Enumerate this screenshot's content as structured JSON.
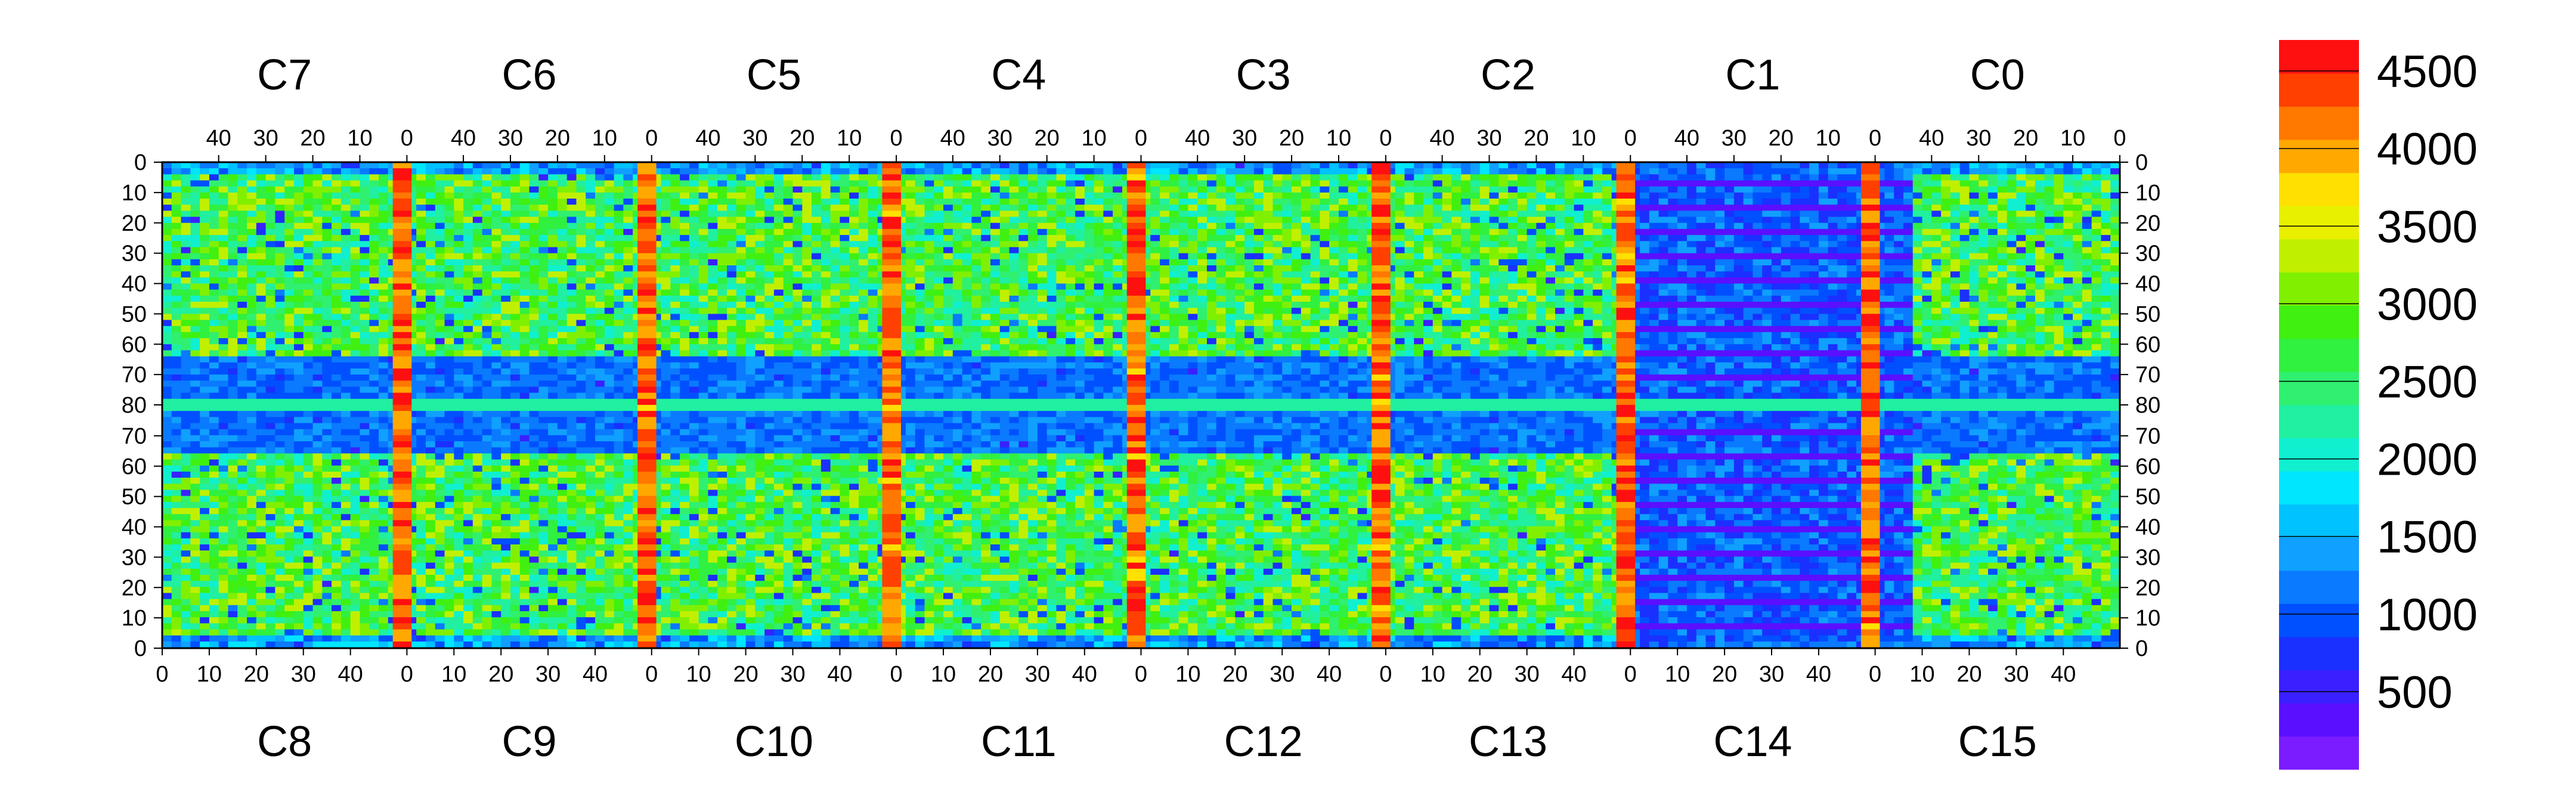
{
  "chart_data": {
    "type": "heatmap",
    "title": "",
    "xlabel": "",
    "ylabel": "",
    "chips_top": [
      "C7",
      "C6",
      "C5",
      "C4",
      "C3",
      "C2",
      "C1",
      "C0"
    ],
    "chips_bottom": [
      "C8",
      "C9",
      "C10",
      "C11",
      "C12",
      "C13",
      "C14",
      "C15"
    ],
    "chip_columns": 52,
    "rows_per_half": 80,
    "x_ticks_top": [
      "40",
      "30",
      "20",
      "10",
      "0"
    ],
    "x_ticks_bottom": [
      "0",
      "10",
      "20",
      "30",
      "40"
    ],
    "y_ticks_top_half": [
      "0",
      "10",
      "20",
      "30",
      "40",
      "50",
      "60",
      "70",
      "80"
    ],
    "y_ticks_bottom_half": [
      "70",
      "60",
      "50",
      "40",
      "30",
      "20",
      "10",
      "0"
    ],
    "zlim": [
      0,
      4700
    ],
    "colorbar": {
      "ticks": [
        "4500",
        "4000",
        "3500",
        "3000",
        "2500",
        "2000",
        "1500",
        "1000",
        "500"
      ],
      "tick_values": [
        4500,
        4000,
        3500,
        3000,
        2500,
        2000,
        1500,
        1000,
        500
      ],
      "colors": [
        "#7a1cff",
        "#5a10ff",
        "#3a20ff",
        "#1a30ff",
        "#0050ff",
        "#0a7aff",
        "#10a0ff",
        "#00c2ff",
        "#00e6ff",
        "#10f0d0",
        "#20f0a0",
        "#30f070",
        "#30f040",
        "#40f010",
        "#80f000",
        "#c0f000",
        "#e8f000",
        "#ffe000",
        "#ffa800",
        "#ff7800",
        "#ff4000",
        "#ff1010"
      ]
    },
    "legend": "right"
  }
}
